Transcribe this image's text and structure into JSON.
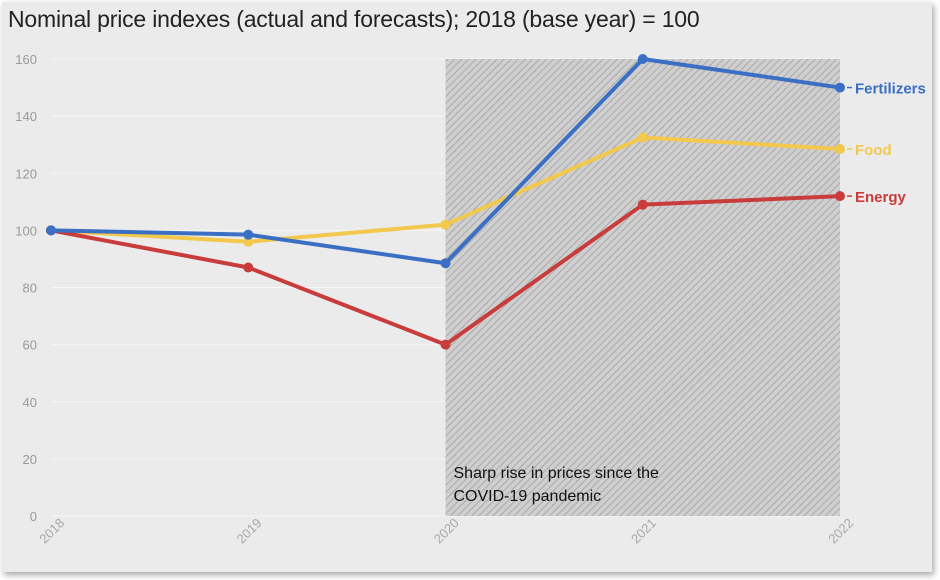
{
  "chart_data": {
    "type": "line",
    "title": "Nominal price indexes (actual and forecasts); 2018 (base year) = 100",
    "categories": [
      "2018",
      "2019",
      "2020",
      "2021",
      "2022"
    ],
    "yticks": [
      "0",
      "20",
      "40",
      "60",
      "80",
      "100",
      "120",
      "140",
      "160"
    ],
    "ylim": [
      0,
      160
    ],
    "grid": true,
    "series": [
      {
        "name": "Food",
        "color": "#f2c94c",
        "values": [
          100,
          96,
          102,
          132.5,
          128.5
        ]
      },
      {
        "name": "Energy",
        "color": "#c83c3c",
        "values": [
          100,
          87,
          60,
          109,
          112
        ]
      },
      {
        "name": "Fertilizers",
        "color": "#3a6fc4",
        "values": [
          100,
          98.5,
          88.5,
          160,
          150
        ]
      }
    ],
    "shaded_region": {
      "from": "2020",
      "to": "2022"
    },
    "annotation": [
      "Sharp rise in prices since the",
      "COVID-19 pandemic"
    ]
  }
}
